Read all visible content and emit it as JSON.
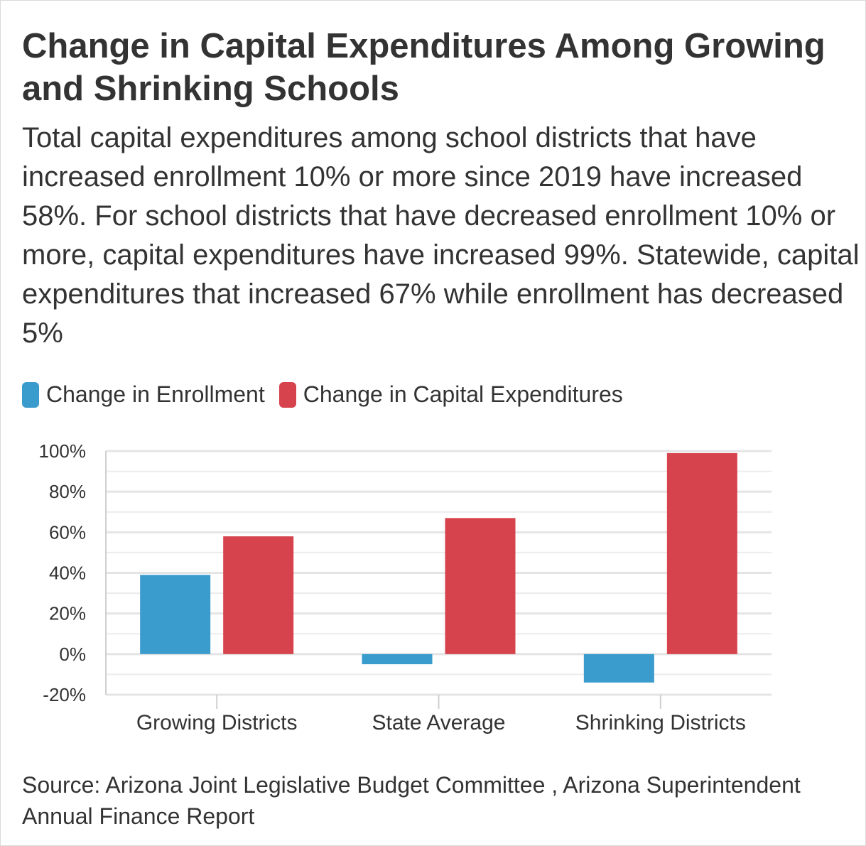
{
  "chart_data": {
    "type": "bar",
    "title": "Change in Capital Expenditures Among Growing and Shrinking Schools",
    "subtitle": "Total capital expenditures among school districts that have increased enrollment 10% or more since 2019 have increased 58%. For school districts that have decreased enrollment 10% or more, capital expenditures have increased 99%. Statewide, capital expenditures that increased 67% while enrollment has decreased 5%",
    "categories": [
      "Growing Districts",
      "State Average",
      "Shrinking Districts"
    ],
    "series": [
      {
        "name": "Change in Enrollment",
        "color": "#3a9bcd",
        "values": [
          39,
          -5,
          -14
        ]
      },
      {
        "name": "Change in Capital Expenditures",
        "color": "#d6434c",
        "values": [
          58,
          67,
          99
        ]
      }
    ],
    "yticks": [
      100,
      80,
      60,
      40,
      20,
      0,
      -20
    ],
    "ytick_labels": [
      "100%",
      "80%",
      "60%",
      "40%",
      "20%",
      "0%",
      "-20%"
    ],
    "ylim": [
      -20,
      100
    ],
    "xlabel": "",
    "ylabel": "",
    "grid": true,
    "legend_position": "top-left",
    "source": "Source: Arizona Joint Legislative Budget Committee , Arizona Superintendent Annual Finance Report"
  }
}
